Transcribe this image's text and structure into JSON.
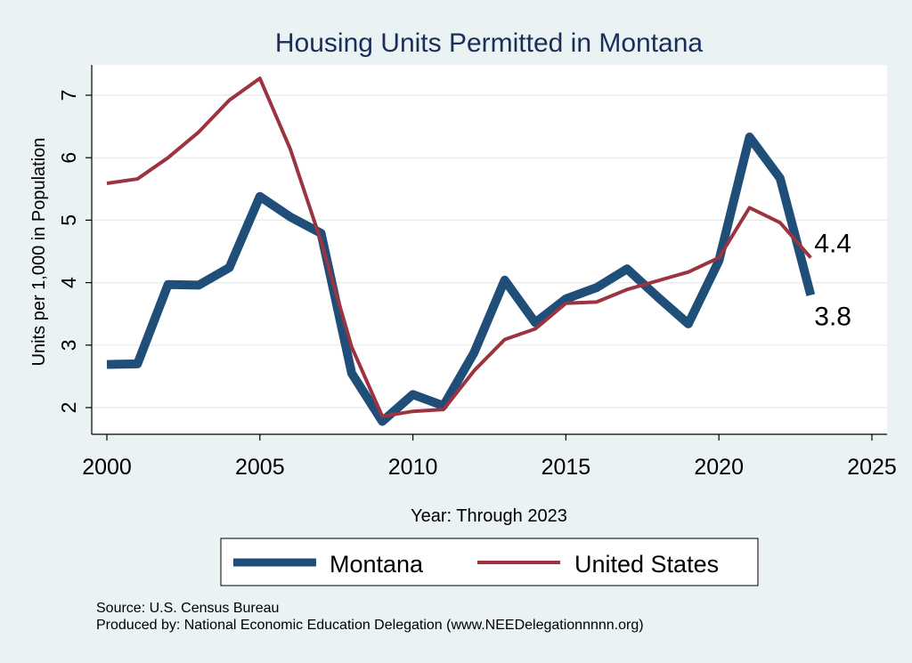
{
  "chart_data": {
    "type": "line",
    "title": "Housing Units Permitted in Montana",
    "xlabel": "Year: Through 2023",
    "ylabel": "Units per 1,000 in Population",
    "xlim": [
      1999.5,
      2025.5
    ],
    "ylim": [
      1.6,
      7.6
    ],
    "x_ticks": [
      2000,
      2005,
      2010,
      2015,
      2020,
      2025
    ],
    "y_ticks": [
      2,
      3,
      4,
      5,
      6,
      7
    ],
    "grid": true,
    "legend_position": "bottom",
    "x": [
      2000,
      2001,
      2002,
      2003,
      2004,
      2005,
      2006,
      2007,
      2008,
      2009,
      2010,
      2011,
      2012,
      2013,
      2014,
      2015,
      2016,
      2017,
      2018,
      2019,
      2020,
      2021,
      2022,
      2023
    ],
    "series": [
      {
        "name": "Montana",
        "color": "#1f4e79",
        "values": [
          2.69,
          2.7,
          3.97,
          3.96,
          4.24,
          5.38,
          5.05,
          4.79,
          2.55,
          1.78,
          2.21,
          2.03,
          2.88,
          4.04,
          3.36,
          3.74,
          3.92,
          4.22,
          3.77,
          3.34,
          4.35,
          6.33,
          5.67,
          3.8
        ],
        "end_label": "3.8"
      },
      {
        "name": "United States",
        "color": "#9b3440",
        "values": [
          5.59,
          5.66,
          6.0,
          6.41,
          6.92,
          7.27,
          6.13,
          4.66,
          2.97,
          1.86,
          1.94,
          1.97,
          2.59,
          3.09,
          3.26,
          3.67,
          3.69,
          3.89,
          4.03,
          4.17,
          4.4,
          5.2,
          4.96,
          4.4
        ],
        "end_label": "4.4"
      }
    ]
  },
  "footer": {
    "source": "Source: U.S. Census Bureau",
    "produced_by": "Produced by: National Economic Education Delegation (www.NEEDelegationnnnn.org)"
  }
}
